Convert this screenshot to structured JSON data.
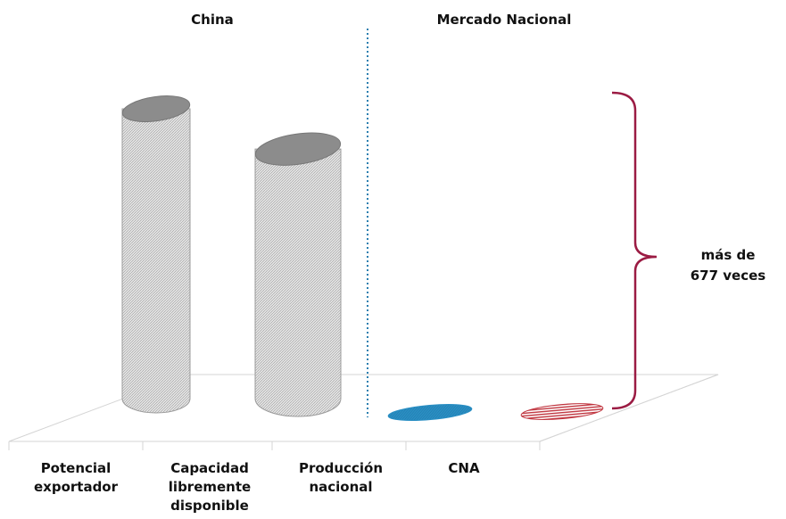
{
  "chart_data": {
    "type": "bar",
    "style": "3d-cylinder",
    "groups": [
      {
        "label": "China",
        "categories": [
          0,
          1
        ]
      },
      {
        "label": "Mercado Nacional",
        "categories": [
          2,
          3
        ]
      }
    ],
    "categories": [
      [
        "Potencial",
        "exportador"
      ],
      [
        "Capacidad",
        "libremente",
        "disponible"
      ],
      [
        "Producción",
        "nacional"
      ],
      [
        "CNA"
      ]
    ],
    "series": [
      {
        "values": [
          360,
          310,
          0.53,
          0.46
        ]
      }
    ],
    "bar_colors": [
      "#d6d6d6",
      "#d6d6d6",
      "#2a8fc4",
      "#c0353f"
    ],
    "ylim": [
      0,
      380
    ],
    "grid": false,
    "annotation": {
      "lines": [
        "más de",
        "677 veces"
      ],
      "bracket_color": "#9b1b43"
    },
    "divider_color": "#2a7fb0"
  }
}
